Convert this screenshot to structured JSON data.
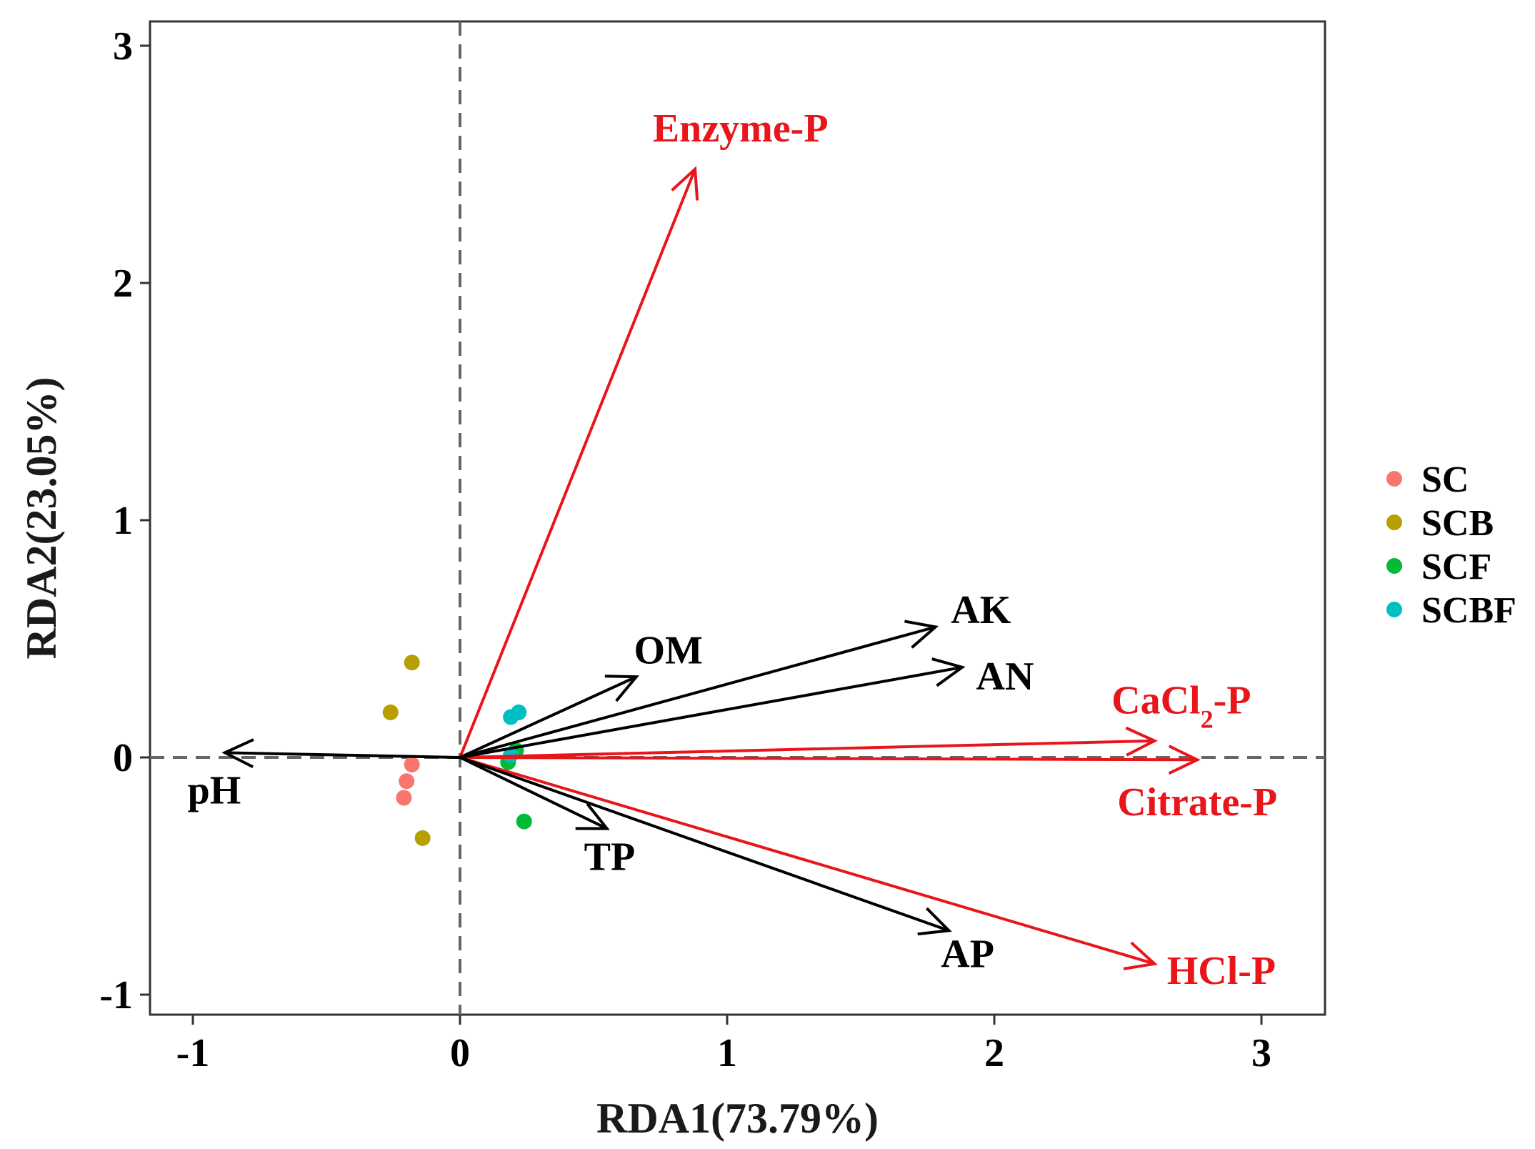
{
  "chart_data": {
    "type": "scatter",
    "subtype": "rda-biplot",
    "title": "",
    "xlabel": "RDA1(73.79%)",
    "ylabel": "RDA2(23.05%)",
    "xlim": [
      -1.15,
      3.25
    ],
    "ylim": [
      -1.12,
      3.1
    ],
    "xticks": [
      -1,
      0,
      1,
      2,
      3
    ],
    "xtick_labels": [
      "-1",
      "0",
      "1",
      "2",
      "3"
    ],
    "yticks": [
      -1,
      0,
      1,
      2,
      3
    ],
    "ytick_labels": [
      "-1",
      "0",
      "1",
      "2",
      "3"
    ],
    "reference_lines": {
      "x": 0,
      "y": 0,
      "style": "dashed",
      "color": "#666666"
    },
    "colors": {
      "SC": "#F8766D",
      "SCB": "#B79F00",
      "SCF": "#00BA38",
      "SCBF": "#00BFC4",
      "response_arrow": "#E8161B",
      "explanatory_arrow": "#000000",
      "response_label": "#E8161B",
      "explanatory_label": "#000000"
    },
    "series": [
      {
        "name": "SC",
        "points": [
          {
            "x": -0.18,
            "y": -0.03
          },
          {
            "x": -0.2,
            "y": -0.1
          },
          {
            "x": -0.21,
            "y": -0.17
          }
        ]
      },
      {
        "name": "SCB",
        "points": [
          {
            "x": -0.18,
            "y": 0.4
          },
          {
            "x": -0.26,
            "y": 0.19
          },
          {
            "x": -0.14,
            "y": -0.34
          }
        ]
      },
      {
        "name": "SCF",
        "points": [
          {
            "x": 0.24,
            "y": -0.27
          },
          {
            "x": 0.21,
            "y": 0.03
          },
          {
            "x": 0.18,
            "y": -0.02
          }
        ]
      },
      {
        "name": "SCBF",
        "points": [
          {
            "x": 0.19,
            "y": 0.17
          },
          {
            "x": 0.22,
            "y": 0.19
          },
          {
            "x": 0.19,
            "y": 0.01
          }
        ]
      }
    ],
    "arrows": [
      {
        "label": "Enzyme-P",
        "x": 0.88,
        "y": 2.48,
        "kind": "response",
        "label_x": 1.05,
        "label_y": 2.65,
        "label_text": {
          "base": "Enzyme-P"
        }
      },
      {
        "label": "CaCl2-P",
        "x": 2.6,
        "y": 0.07,
        "kind": "response",
        "label_x": 2.7,
        "label_y": 0.24,
        "label_text": {
          "base": "CaCl",
          "sub": "2",
          "suffix": "-P"
        }
      },
      {
        "label": "Citrate-P",
        "x": 2.76,
        "y": -0.01,
        "kind": "response",
        "label_x": 2.76,
        "label_y": -0.19,
        "label_text": {
          "base": "Citrate-P"
        }
      },
      {
        "label": "HCl-P",
        "x": 2.6,
        "y": -0.87,
        "kind": "response",
        "label_x": 2.85,
        "label_y": -0.9,
        "label_text": {
          "base": "HCl-P"
        }
      },
      {
        "label": "OM",
        "x": 0.66,
        "y": 0.34,
        "kind": "explanatory",
        "label_x": 0.78,
        "label_y": 0.45,
        "label_text": {
          "base": "OM"
        }
      },
      {
        "label": "AK",
        "x": 1.78,
        "y": 0.55,
        "kind": "explanatory",
        "label_x": 1.95,
        "label_y": 0.62,
        "label_text": {
          "base": "AK"
        }
      },
      {
        "label": "AN",
        "x": 1.88,
        "y": 0.38,
        "kind": "explanatory",
        "label_x": 2.04,
        "label_y": 0.34,
        "label_text": {
          "base": "AN"
        }
      },
      {
        "label": "TP",
        "x": 0.55,
        "y": -0.3,
        "kind": "explanatory",
        "label_x": 0.56,
        "label_y": -0.42,
        "label_text": {
          "base": "TP"
        }
      },
      {
        "label": "AP",
        "x": 1.83,
        "y": -0.73,
        "kind": "explanatory",
        "label_x": 1.9,
        "label_y": -0.83,
        "label_text": {
          "base": "AP"
        }
      },
      {
        "label": "pH",
        "x": -0.88,
        "y": 0.02,
        "kind": "explanatory",
        "label_x": -0.92,
        "label_y": -0.14,
        "label_text": {
          "base": "pH"
        }
      }
    ],
    "legend": {
      "position": "right",
      "entries": [
        "SC",
        "SCB",
        "SCF",
        "SCBF"
      ]
    }
  }
}
